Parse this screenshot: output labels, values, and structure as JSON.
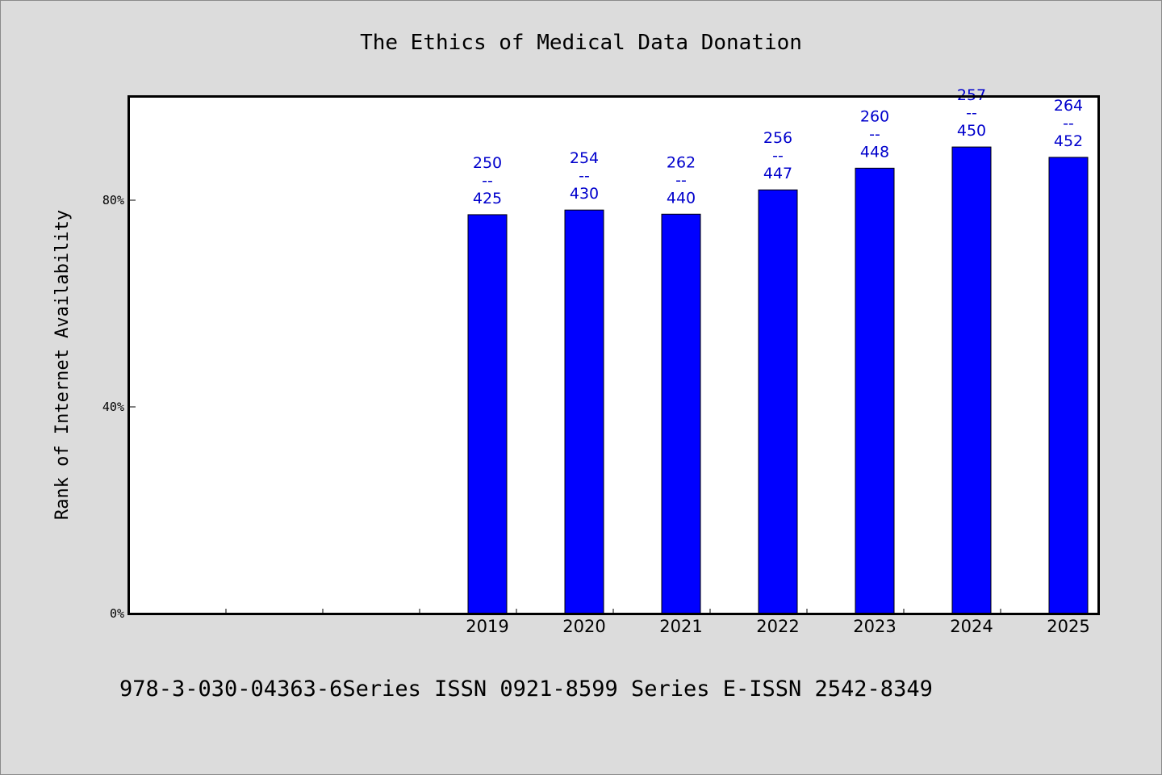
{
  "chart_data": {
    "type": "bar",
    "title": "The Ethics of Medical Data Donation",
    "xlabel": "",
    "ylabel": "Rank of Internet Availability",
    "categories": [
      "",
      "",
      "",
      "2019",
      "2020",
      "2021",
      "2022",
      "2023",
      "2024",
      "2025"
    ],
    "values": [
      null,
      null,
      null,
      77.2,
      78.1,
      77.3,
      82.0,
      86.2,
      90.3,
      88.3
    ],
    "data_labels": [
      null,
      null,
      null,
      [
        "250",
        "--",
        "425"
      ],
      [
        "254",
        "--",
        "430"
      ],
      [
        "262",
        "--",
        "440"
      ],
      [
        "256",
        "--",
        "447"
      ],
      [
        "260",
        "--",
        "448"
      ],
      [
        "257",
        "--",
        "450"
      ],
      [
        "264",
        "--",
        "452"
      ]
    ],
    "ylim": [
      0,
      100
    ],
    "yticks": [
      {
        "value": 0,
        "label": "0%"
      },
      {
        "value": 40,
        "label": "40%"
      },
      {
        "value": 80,
        "label": "80%"
      }
    ],
    "grid": false,
    "legend": "none",
    "colors": {
      "bar": "#0000ff",
      "bar_edge": "#000000",
      "data_label": "#0000cc",
      "plot_bg": "#ffffff",
      "page_bg": "#dcdcdc"
    }
  },
  "footer": {
    "text": "978-3-030-04363-6Series ISSN 0921-8599 Series E-ISSN 2542-8349"
  }
}
